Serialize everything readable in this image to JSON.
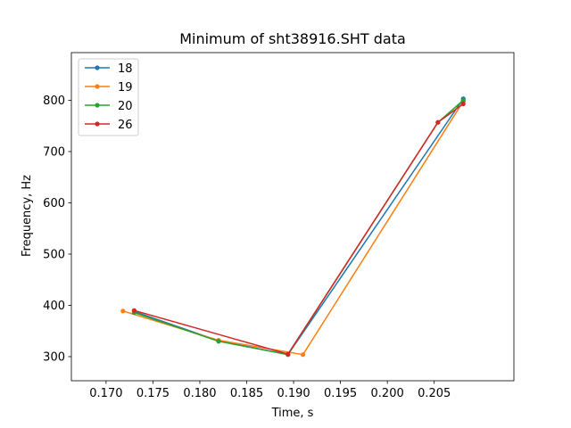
{
  "chart_data": {
    "type": "line",
    "title": "Minimum of sht38916.SHT data",
    "xlabel": "Time, s",
    "ylabel": "Frequency, Hz",
    "xlim": [
      0.1663,
      0.2135
    ],
    "ylim": [
      253,
      893
    ],
    "xticks": [
      0.17,
      0.175,
      0.18,
      0.185,
      0.19,
      0.195,
      0.2,
      0.205
    ],
    "xtick_labels": [
      "0.170",
      "0.175",
      "0.180",
      "0.185",
      "0.190",
      "0.195",
      "0.200",
      "0.205"
    ],
    "yticks": [
      300,
      400,
      500,
      600,
      700,
      800
    ],
    "ytick_labels": [
      "300",
      "400",
      "500",
      "600",
      "700",
      "800"
    ],
    "grid": false,
    "legend_position": "top-left",
    "series": [
      {
        "name": "18",
        "color": "#1f77b4",
        "x": [
          0.173,
          0.182,
          0.1894,
          0.2081
        ],
        "y": [
          388,
          331,
          304,
          803
        ]
      },
      {
        "name": "19",
        "color": "#ff7f0e",
        "x": [
          0.1718,
          0.182,
          0.191,
          0.2081
        ],
        "y": [
          389,
          332,
          304,
          798
        ]
      },
      {
        "name": "20",
        "color": "#2ca02c",
        "x": [
          0.173,
          0.182,
          0.1894,
          0.2054,
          0.2081
        ],
        "y": [
          386,
          330,
          304,
          757,
          800
        ]
      },
      {
        "name": "26",
        "color": "#d62728",
        "x": [
          0.173,
          0.1894,
          0.2054,
          0.2081
        ],
        "y": [
          390,
          305,
          757,
          793
        ]
      }
    ]
  }
}
